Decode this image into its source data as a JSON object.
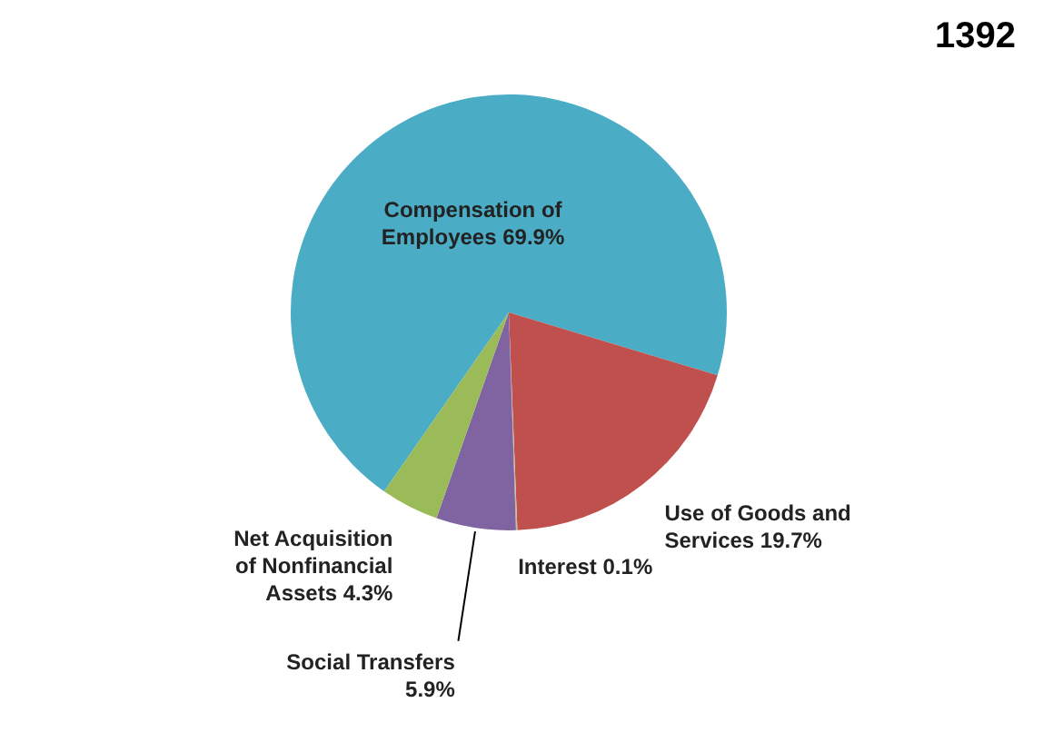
{
  "chart_data": {
    "type": "pie",
    "title": "1392",
    "categories": [
      "Compensation of Employees",
      "Use of Goods and Services",
      "Interest",
      "Social Transfers",
      "Net Acquisition of Nonfinancial Assets"
    ],
    "values": [
      69.9,
      19.7,
      0.1,
      5.9,
      4.3
    ],
    "colors": [
      "#4bacc6",
      "#c0504d",
      "#c4bd97",
      "#8064a2",
      "#9bbb59"
    ],
    "value_labels": [
      "69.9%",
      "19.7%",
      "0.1%",
      "5.9%",
      "4.3%"
    ],
    "legend": false
  }
}
